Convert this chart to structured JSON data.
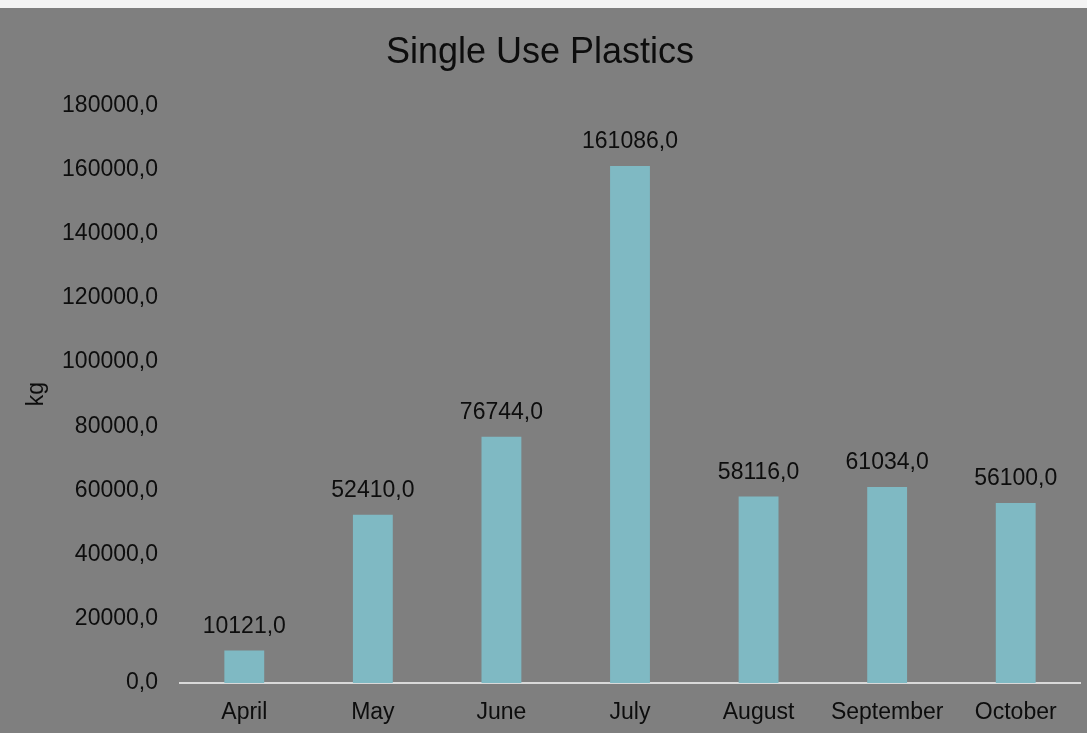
{
  "chart_data": {
    "type": "bar",
    "title": "Single Use Plastics",
    "ylabel": "kg",
    "categories": [
      "April",
      "May",
      "June",
      "July",
      "August",
      "September",
      "October"
    ],
    "values": [
      10121,
      52410,
      76744,
      161086,
      58116,
      61034,
      56100
    ],
    "value_labels": [
      "10121,0",
      "52410,0",
      "76744,0",
      "161086,0",
      "58116,0",
      "61034,0",
      "56100,0"
    ],
    "color": "#7fb9c3",
    "ylim": [
      0,
      180000
    ],
    "yticks": [
      {
        "value": 0,
        "label": "0,0"
      },
      {
        "value": 20000,
        "label": "20000,0"
      },
      {
        "value": 40000,
        "label": "40000,0"
      },
      {
        "value": 60000,
        "label": "60000,0"
      },
      {
        "value": 80000,
        "label": "80000,0"
      },
      {
        "value": 100000,
        "label": "100000,0"
      },
      {
        "value": 120000,
        "label": "120000,0"
      },
      {
        "value": 140000,
        "label": "140000,0"
      },
      {
        "value": 160000,
        "label": "160000,0"
      },
      {
        "value": 180000,
        "label": "180000,0"
      }
    ]
  }
}
